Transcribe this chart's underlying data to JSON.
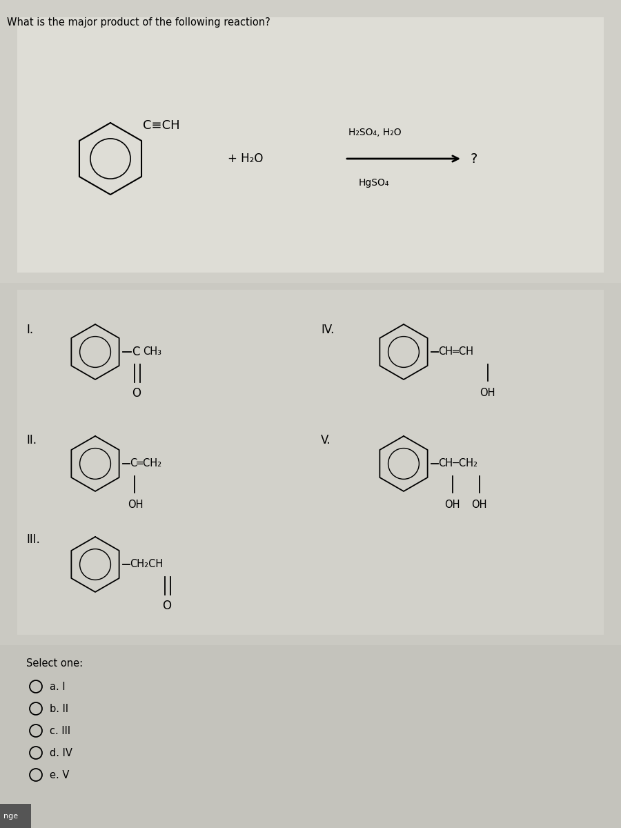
{
  "title": "What is the major product of the following reaction?",
  "fig_width": 9.0,
  "fig_height": 12.0,
  "bg_outer": "#a8a8a8",
  "bg_question": "#d0cfc8",
  "bg_answers": "#cccbc4",
  "bg_options": "#c4c3bc",
  "inner_box_q": "#deded6",
  "inner_box_a": "#d4d3cc",
  "reaction_above": "H₂SO₄, H₂O",
  "reaction_below": "HgSO₄",
  "plus_h2o": "+ H₂O",
  "question_mark": "?",
  "select_one": "Select one:",
  "options": [
    "a. I",
    "b. II",
    "c. III",
    "d. IV",
    "e. V"
  ]
}
